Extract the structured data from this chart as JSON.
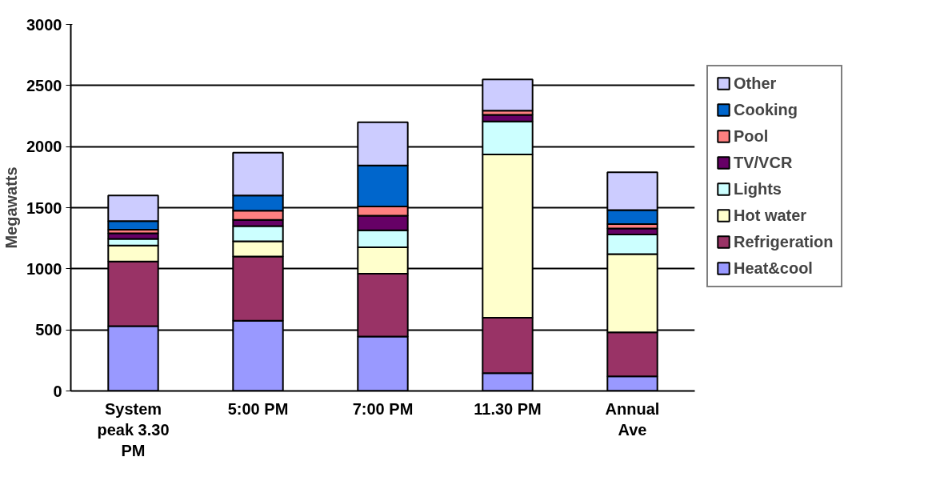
{
  "chart_data": {
    "type": "bar",
    "stacked": true,
    "ylabel": "Megawatts",
    "categories": [
      "System peak 3.30 PM",
      "5:00 PM",
      "7:00 PM",
      "11.30 PM",
      "Annual Ave"
    ],
    "series": [
      {
        "name": "Heat&cool",
        "color": "#9999ff",
        "values": [
          530,
          575,
          445,
          145,
          120
        ]
      },
      {
        "name": "Refrigeration",
        "color": "#993366",
        "values": [
          530,
          525,
          515,
          455,
          360
        ]
      },
      {
        "name": "Hot water",
        "color": "#ffffcc",
        "values": [
          130,
          125,
          215,
          1335,
          640
        ]
      },
      {
        "name": "Lights",
        "color": "#ccffff",
        "values": [
          55,
          125,
          140,
          270,
          160
        ]
      },
      {
        "name": "TV/VCR",
        "color": "#660066",
        "values": [
          45,
          50,
          120,
          55,
          50
        ]
      },
      {
        "name": "Pool",
        "color": "#ff8080",
        "values": [
          30,
          75,
          75,
          35,
          35
        ]
      },
      {
        "name": "Cooking",
        "color": "#0066cc",
        "values": [
          70,
          125,
          335,
          null,
          115
        ]
      },
      {
        "name": "Other",
        "color": "#ccccff",
        "values": [
          210,
          350,
          355,
          255,
          310
        ]
      }
    ],
    "ylim": [
      0,
      3000
    ],
    "yticks": [
      0,
      500,
      1000,
      1500,
      2000,
      2500,
      3000
    ],
    "grid": "y",
    "legend": "right"
  }
}
